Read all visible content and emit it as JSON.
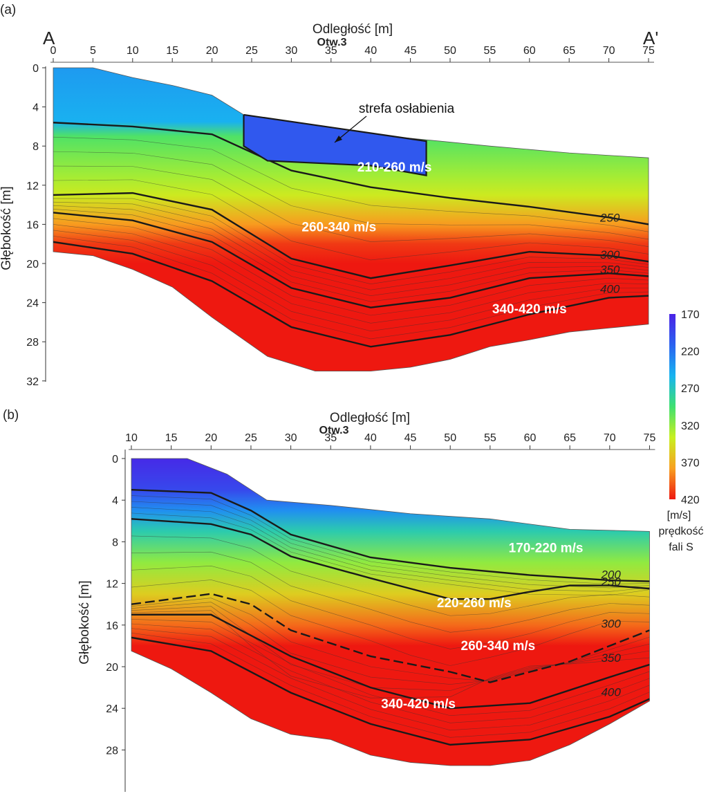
{
  "figure": {
    "colorbar": {
      "ticks": [
        170,
        220,
        270,
        320,
        370,
        420
      ],
      "unit": "[m/s]",
      "caption_line1": "prędkość",
      "caption_line2": "fali S",
      "colors": [
        "#4a22e6",
        "#2b62f0",
        "#18b4f0",
        "#3fe070",
        "#c8f020",
        "#f8a020",
        "#ee1810"
      ]
    }
  },
  "chart_data": [
    {
      "type": "heatmap",
      "panel_label": "(a)",
      "xlabel": "Odległość [m]",
      "ylabel": "Głębokość [m]",
      "xlim": [
        0,
        75
      ],
      "ylim": [
        0,
        32
      ],
      "x_ticks": [
        0,
        5,
        10,
        15,
        20,
        25,
        30,
        35,
        40,
        45,
        50,
        55,
        60,
        65,
        70,
        75
      ],
      "y_ticks": [
        0,
        4,
        8,
        12,
        16,
        20,
        24,
        28,
        32
      ],
      "endpoint_left": "A",
      "endpoint_right": "A'",
      "borehole_label": "Otw.3",
      "borehole_x": 35,
      "top_surface": [
        [
          0,
          0
        ],
        [
          5,
          0
        ],
        [
          10,
          1
        ],
        [
          15,
          1.8
        ],
        [
          20,
          2.8
        ],
        [
          24,
          4.8
        ],
        [
          27,
          6.2
        ],
        [
          35,
          6.5
        ],
        [
          45,
          7.2
        ],
        [
          55,
          8
        ],
        [
          65,
          8.7
        ],
        [
          75,
          9.2
        ]
      ],
      "bottom_surface": [
        [
          0,
          18.8
        ],
        [
          5,
          19.2
        ],
        [
          10,
          20.6
        ],
        [
          15,
          22.4
        ],
        [
          20,
          25.5
        ],
        [
          27,
          29.5
        ],
        [
          33,
          31
        ],
        [
          40,
          31
        ],
        [
          45,
          30.6
        ],
        [
          50,
          29.8
        ],
        [
          55,
          28.5
        ],
        [
          60,
          27.8
        ],
        [
          65,
          27
        ],
        [
          70,
          26.6
        ],
        [
          75,
          26.2
        ]
      ],
      "velocity_profile": [
        {
          "depth": 0,
          "v": 240
        },
        {
          "depth": 5.5,
          "v": 252
        },
        {
          "depth": 7,
          "v": 300
        },
        {
          "depth": 11,
          "v": 325
        },
        {
          "depth": 13,
          "v": 340
        },
        {
          "depth": 16,
          "v": 380
        },
        {
          "depth": 18,
          "v": 410
        },
        {
          "depth": 20,
          "v": 420
        }
      ],
      "isolines": [
        {
          "value": 250,
          "label": "250",
          "points": [
            [
              0,
              5.6
            ],
            [
              10,
              6
            ],
            [
              20,
              6.8
            ],
            [
              30,
              10.5
            ],
            [
              40,
              12.2
            ],
            [
              50,
              13.3
            ],
            [
              60,
              14.2
            ],
            [
              70,
              15.3
            ],
            [
              75,
              16
            ]
          ]
        },
        {
          "value": 300,
          "label": "300",
          "points": [
            [
              0,
              13
            ],
            [
              10,
              12.8
            ],
            [
              20,
              14.5
            ],
            [
              30,
              19.5
            ],
            [
              40,
              21.5
            ],
            [
              50,
              20.2
            ],
            [
              60,
              18.8
            ],
            [
              70,
              19.2
            ],
            [
              75,
              19.8
            ]
          ]
        },
        {
          "value": 350,
          "label": "350",
          "points": [
            [
              0,
              14.8
            ],
            [
              10,
              15.6
            ],
            [
              20,
              17.8
            ],
            [
              30,
              22.5
            ],
            [
              40,
              24.5
            ],
            [
              50,
              23.5
            ],
            [
              60,
              21.5
            ],
            [
              70,
              21
            ],
            [
              75,
              21.3
            ]
          ]
        },
        {
          "value": 400,
          "label": "400",
          "points": [
            [
              0,
              17.8
            ],
            [
              10,
              19
            ],
            [
              20,
              21.8
            ],
            [
              30,
              26.5
            ],
            [
              40,
              28.5
            ],
            [
              50,
              27.3
            ],
            [
              60,
              25.2
            ],
            [
              70,
              23.5
            ],
            [
              75,
              23.3
            ]
          ]
        }
      ],
      "weak_zone": {
        "label": "strefa osłabienia",
        "points": [
          [
            24,
            4.8
          ],
          [
            24,
            8
          ],
          [
            27,
            9.5
          ],
          [
            40,
            10
          ],
          [
            47,
            11
          ],
          [
            47,
            7.5
          ],
          [
            24,
            4.8
          ]
        ]
      },
      "zones": [
        {
          "label": "210-260 m/s",
          "x": 43,
          "depth": 10.6
        },
        {
          "label": "260-340 m/s",
          "x": 36,
          "depth": 16.7
        },
        {
          "label": "340-420 m/s",
          "x": 60,
          "depth": 25.1
        }
      ]
    },
    {
      "type": "heatmap",
      "panel_label": "(b)",
      "xlabel": "Odległość [m]",
      "ylabel": "Głębokość [m]",
      "xlim": [
        10,
        75
      ],
      "ylim": [
        0,
        32
      ],
      "x_ticks": [
        10,
        15,
        20,
        25,
        30,
        35,
        40,
        45,
        50,
        55,
        60,
        65,
        70,
        75
      ],
      "y_ticks": [
        0,
        4,
        8,
        12,
        16,
        20,
        24,
        28
      ],
      "borehole_label": "Otw.3",
      "borehole_x": 35,
      "top_surface": [
        [
          10,
          0
        ],
        [
          17,
          0
        ],
        [
          22,
          1.5
        ],
        [
          27,
          4
        ],
        [
          35,
          4.5
        ],
        [
          45,
          5.3
        ],
        [
          55,
          5.8
        ],
        [
          65,
          6.8
        ],
        [
          75,
          7
        ]
      ],
      "bottom_surface": [
        [
          10,
          18.5
        ],
        [
          15,
          20.2
        ],
        [
          20,
          22.5
        ],
        [
          25,
          25
        ],
        [
          30,
          26.5
        ],
        [
          35,
          27
        ],
        [
          40,
          28.5
        ],
        [
          45,
          29.2
        ],
        [
          50,
          29.5
        ],
        [
          55,
          29.5
        ],
        [
          60,
          29
        ],
        [
          65,
          27.5
        ],
        [
          70,
          25.5
        ],
        [
          75,
          23.3
        ]
      ],
      "velocity_profile": [
        {
          "depth": 0,
          "v": 175
        },
        {
          "depth": 3,
          "v": 195
        },
        {
          "depth": 5,
          "v": 235
        },
        {
          "depth": 7,
          "v": 275
        },
        {
          "depth": 10,
          "v": 320
        },
        {
          "depth": 13,
          "v": 355
        },
        {
          "depth": 16,
          "v": 395
        },
        {
          "depth": 18,
          "v": 420
        }
      ],
      "isolines": [
        {
          "value": 200,
          "label": "200",
          "points": [
            [
              10,
              3
            ],
            [
              20,
              3.3
            ],
            [
              25,
              5
            ],
            [
              30,
              7.3
            ],
            [
              40,
              9.5
            ],
            [
              50,
              10.5
            ],
            [
              60,
              11.2
            ],
            [
              70,
              11.7
            ],
            [
              75,
              11.8
            ]
          ]
        },
        {
          "value": 250,
          "label": "250",
          "points": [
            [
              10,
              5.8
            ],
            [
              20,
              6.3
            ],
            [
              25,
              7.3
            ],
            [
              30,
              9.4
            ],
            [
              40,
              11.5
            ],
            [
              45,
              12.5
            ],
            [
              50,
              13.5
            ],
            [
              55,
              13.5
            ],
            [
              60,
              12.8
            ],
            [
              65,
              12.2
            ],
            [
              70,
              12.2
            ],
            [
              75,
              12.5
            ]
          ]
        },
        {
          "value": 300,
          "label": "300",
          "points": [
            [
              10,
              14
            ],
            [
              20,
              13
            ],
            [
              25,
              14
            ],
            [
              30,
              16.5
            ],
            [
              40,
              19
            ],
            [
              50,
              20.5
            ],
            [
              55,
              21.5
            ],
            [
              60,
              20.5
            ],
            [
              65,
              19.5
            ],
            [
              70,
              18
            ],
            [
              75,
              16.5
            ]
          ]
        },
        {
          "value": 350,
          "label": "350",
          "points": [
            [
              10,
              15
            ],
            [
              20,
              15
            ],
            [
              30,
              19
            ],
            [
              40,
              22
            ],
            [
              50,
              24
            ],
            [
              60,
              23.5
            ],
            [
              70,
              21
            ],
            [
              75,
              19.8
            ]
          ]
        },
        {
          "value": 400,
          "label": "400",
          "points": [
            [
              10,
              17.2
            ],
            [
              20,
              18.5
            ],
            [
              30,
              22.5
            ],
            [
              40,
              25.5
            ],
            [
              50,
              27.5
            ],
            [
              60,
              27
            ],
            [
              70,
              24.8
            ],
            [
              75,
              23.1
            ]
          ]
        }
      ],
      "zones": [
        {
          "label": "170-220 m/s",
          "x": 62,
          "depth": 9
        },
        {
          "label": "220-260 m/s",
          "x": 53,
          "depth": 14.3
        },
        {
          "label": "260-340 m/s",
          "x": 56,
          "depth": 18.4
        },
        {
          "label": "340-420 m/s",
          "x": 46,
          "depth": 24
        }
      ]
    }
  ]
}
